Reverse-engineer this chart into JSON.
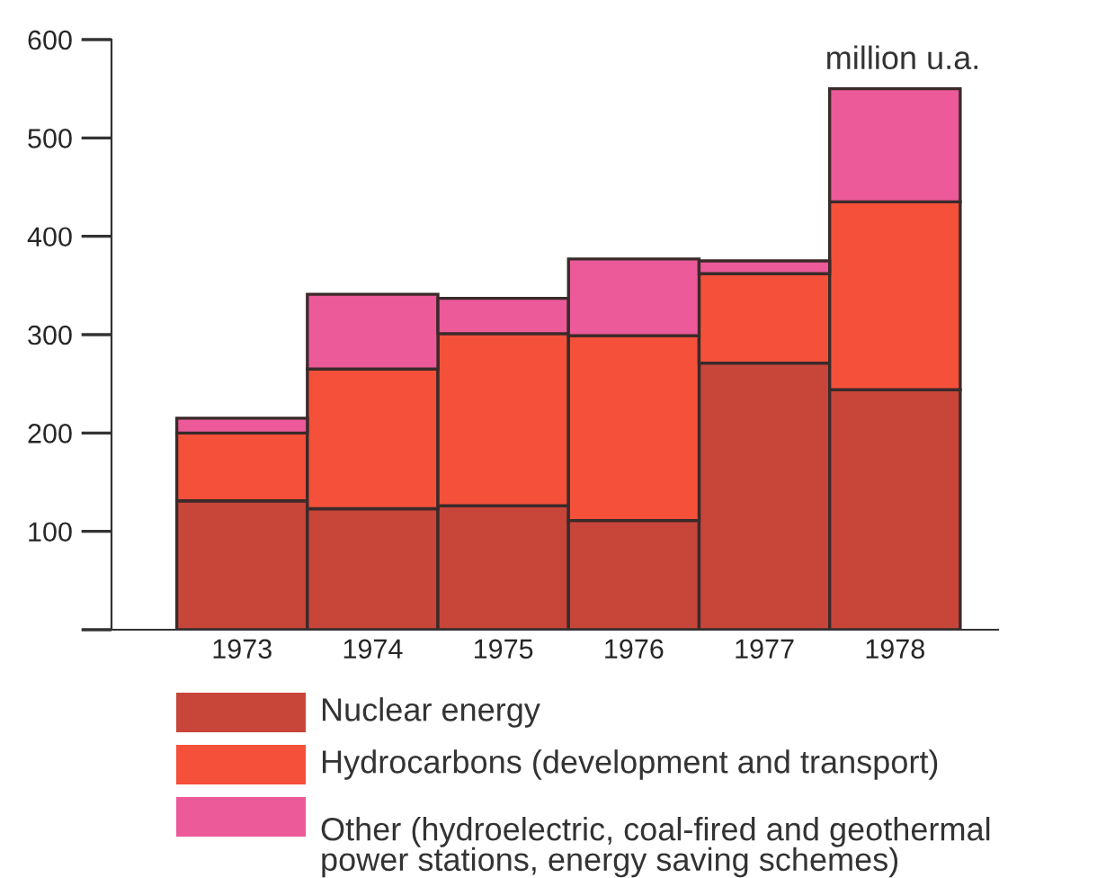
{
  "chart_data": {
    "type": "bar",
    "stacked": true,
    "categories": [
      "1973",
      "1974",
      "1975",
      "1976",
      "1977",
      "1978"
    ],
    "series": [
      {
        "name": "Nuclear energy",
        "color": "#c8453a",
        "values": [
          131,
          123,
          126,
          111,
          271,
          244
        ]
      },
      {
        "name": "Hydrocarbons (development and transport)",
        "color": "#f4503a",
        "values": [
          69,
          142,
          175,
          188,
          91,
          191
        ]
      },
      {
        "name": "Other (hydroelectric, coal-fired and geothermal\npower stations, energy saving schemes)",
        "color": "#ec5a9a",
        "values": [
          15,
          76,
          36,
          78,
          13,
          115
        ]
      }
    ],
    "ylim": [
      0,
      600
    ],
    "yticks": [
      {
        "value": 0,
        "label": null
      },
      100,
      200,
      300,
      400,
      500,
      600
    ],
    "annotations": [
      "million u.a."
    ],
    "legend": "bottom",
    "grid": false
  }
}
